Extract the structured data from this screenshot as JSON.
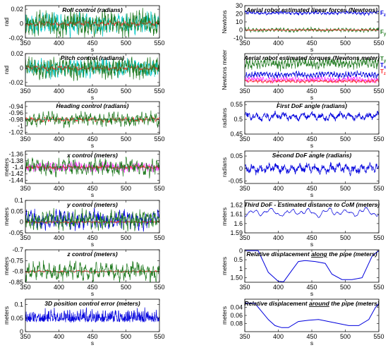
{
  "chart_data": [
    {
      "id": "roll",
      "type": "line",
      "title": "Roll control (radians)",
      "xlabel": "s",
      "ylabel": "rad",
      "xlim": [
        350,
        550
      ],
      "ylim": [
        -0.02,
        0.025
      ],
      "xticks": [
        350,
        400,
        450,
        500,
        550
      ],
      "yticks": [
        -0.02,
        0,
        0.02
      ],
      "yticklabels": [
        "-0.02",
        "0",
        "0.02"
      ],
      "series": [
        {
          "color": "#00c8c8",
          "amp": 0.012,
          "freq": 1.3,
          "seed": 1,
          "mean": 0
        },
        {
          "color": "#ff3030",
          "amp": 0.003,
          "freq": 0.6,
          "seed": 2,
          "mean": 0
        },
        {
          "color": "#207a20",
          "amp": 0.014,
          "freq": 1.5,
          "seed": 3,
          "mean": 0
        }
      ]
    },
    {
      "id": "pitch",
      "type": "line",
      "title": "Pitch control (radians)",
      "xlabel": "s",
      "ylabel": "rad",
      "xlim": [
        350,
        550
      ],
      "ylim": [
        -0.025,
        0.02
      ],
      "xticks": [
        350,
        400,
        450,
        500,
        550
      ],
      "yticks": [
        -0.02,
        0,
        0.02
      ],
      "yticklabels": [
        "-0.02",
        "0",
        "0.02"
      ],
      "series": [
        {
          "color": "#00c8c8",
          "amp": 0.01,
          "freq": 1.3,
          "seed": 4,
          "mean": 0
        },
        {
          "color": "#ff3030",
          "amp": 0.003,
          "freq": 0.6,
          "seed": 5,
          "mean": 0
        },
        {
          "color": "#207a20",
          "amp": 0.012,
          "freq": 1.5,
          "seed": 6,
          "mean": 0
        }
      ]
    },
    {
      "id": "heading",
      "type": "line",
      "title": "Heading control (radians)",
      "xlabel": "s",
      "ylabel": "",
      "xlim": [
        350,
        550
      ],
      "ylim": [
        -1.025,
        -0.925
      ],
      "xticks": [
        350,
        400,
        450,
        500,
        550
      ],
      "yticks": [
        -1.02,
        -1,
        -0.98,
        -0.96,
        -0.94
      ],
      "yticklabels": [
        "-1.02",
        "-1",
        "-0.98",
        "-0.96",
        "-0.94"
      ],
      "series": [
        {
          "color": "#ff3030",
          "amp": 0.006,
          "freq": 0.7,
          "seed": 7,
          "mean": -0.98
        },
        {
          "color": "#207a20",
          "amp": 0.018,
          "freq": 1.0,
          "seed": 8,
          "mean": -0.98
        }
      ],
      "hline": {
        "value": -0.98,
        "color": "#00c8c8"
      }
    },
    {
      "id": "x",
      "type": "line",
      "title": "x control (meters)",
      "xlabel": "s",
      "ylabel": "meters",
      "xlim": [
        350,
        550
      ],
      "ylim": [
        -1.45,
        -1.35
      ],
      "xticks": [
        350,
        400,
        450,
        500,
        550
      ],
      "yticks": [
        -1.44,
        -1.42,
        -1.4,
        -1.38,
        -1.36
      ],
      "yticklabels": [
        "-1.44",
        "-1.42",
        "-1.4",
        "-1.38",
        "-1.36"
      ],
      "series": [
        {
          "color": "#ff30ff",
          "amp": 0.012,
          "freq": 1.8,
          "seed": 9,
          "mean": -1.4
        },
        {
          "color": "#ff3030",
          "amp": 0.004,
          "freq": 0.7,
          "seed": 10,
          "mean": -1.4
        },
        {
          "color": "#207a20",
          "amp": 0.022,
          "freq": 0.9,
          "seed": 11,
          "mean": -1.4
        }
      ],
      "hline": {
        "value": -1.4,
        "color": "#00c8c8"
      }
    },
    {
      "id": "y",
      "type": "line",
      "title": "y control (meters)",
      "xlabel": "s",
      "ylabel": "meters",
      "xlim": [
        350,
        550
      ],
      "ylim": [
        -0.05,
        0.1
      ],
      "xticks": [
        350,
        400,
        450,
        500,
        550
      ],
      "yticks": [
        -0.05,
        0,
        0.05,
        0.1
      ],
      "yticklabels": [
        "-0.05",
        "0",
        "0.05",
        "0.1"
      ],
      "series": [
        {
          "color": "#0000dd",
          "amp": 0.035,
          "freq": 1.1,
          "seed": 12,
          "mean": 0.01
        },
        {
          "color": "#ff3030",
          "amp": 0.004,
          "freq": 0.6,
          "seed": 13,
          "mean": 0
        },
        {
          "color": "#207a20",
          "amp": 0.035,
          "freq": 1.3,
          "seed": 14,
          "mean": 0.01
        }
      ],
      "hline": {
        "value": 0,
        "color": "#00c8c8"
      }
    },
    {
      "id": "z",
      "type": "line",
      "title": "z control (meters)",
      "xlabel": "s",
      "ylabel": "meters",
      "xlim": [
        350,
        550
      ],
      "ylim": [
        -0.85,
        -0.7
      ],
      "xticks": [
        350,
        400,
        450,
        500,
        550
      ],
      "yticks": [
        -0.85,
        -0.8,
        -0.75,
        -0.7
      ],
      "yticklabels": [
        "-0.85",
        "-0.8",
        "-0.75",
        "-0.7"
      ],
      "series": [
        {
          "color": "#ff3030",
          "amp": 0.004,
          "freq": 0.6,
          "seed": 15,
          "mean": -0.8
        },
        {
          "color": "#207a20",
          "amp": 0.035,
          "freq": 0.9,
          "seed": 16,
          "mean": -0.8
        }
      ],
      "hline": {
        "value": -0.8,
        "color": "#00c8c8"
      }
    },
    {
      "id": "err",
      "type": "line",
      "title": "3D position control error (meters)",
      "xlabel": "s",
      "ylabel": "meters",
      "xlim": [
        350,
        550
      ],
      "ylim": [
        0,
        0.12
      ],
      "xticks": [
        350,
        400,
        450,
        500,
        550
      ],
      "yticks": [
        0,
        0.05,
        0.1
      ],
      "yticklabels": [
        "0",
        "0.05",
        "0.1"
      ],
      "series": [
        {
          "color": "#0000dd",
          "amp": 0.03,
          "freq": 1.6,
          "seed": 17,
          "mean": 0.035,
          "abs": true
        }
      ]
    },
    {
      "id": "forces",
      "type": "line",
      "title": "Aerial robot estimated linear forces (Newtons)",
      "xlabel": "s",
      "ylabel": "Newtons",
      "xlim": [
        350,
        550
      ],
      "ylim": [
        -10,
        30
      ],
      "xticks": [
        350,
        400,
        450,
        500,
        550
      ],
      "yticks": [
        -10,
        0,
        10,
        20,
        30
      ],
      "yticklabels": [
        "-10",
        "0",
        "10",
        "20",
        "30"
      ],
      "series": [
        {
          "name": "F",
          "sub": "z",
          "color": "#0000dd",
          "amp": 2.0,
          "freq": 1.2,
          "seed": 18,
          "mean": 21
        },
        {
          "name": "F",
          "sub": "y",
          "color": "#207a20",
          "amp": 2.2,
          "freq": 1.2,
          "seed": 19,
          "mean": 0
        },
        {
          "color": "#ff3030",
          "amp": 0.5,
          "freq": 1.0,
          "seed": 20,
          "mean": 0
        }
      ]
    },
    {
      "id": "torques",
      "type": "line",
      "title": "Aerial robot estimated torques (Newtons meter)",
      "xlabel": "s",
      "ylabel": "Newtons meter",
      "xlim": [
        350,
        550
      ],
      "ylim": [
        -4,
        6
      ],
      "xticks": [
        350,
        400,
        450,
        500,
        550
      ],
      "yticks": [],
      "yticklabels": [],
      "series": [
        {
          "name": "T",
          "sub": "y",
          "color": "#207a20",
          "amp": 1.5,
          "freq": 1.6,
          "seed": 21,
          "mean": 3
        },
        {
          "name": "T",
          "sub": "x",
          "color": "#0000dd",
          "amp": 0.9,
          "freq": 1.6,
          "seed": 22,
          "mean": -0.5
        },
        {
          "color": "#ff30ff",
          "amp": 0.8,
          "freq": 1.6,
          "seed": 23,
          "mean": -2
        },
        {
          "name": "T",
          "sub": "z",
          "color": "#ff3030",
          "amp": 0.4,
          "freq": 1.0,
          "seed": 24,
          "mean": -2.5
        }
      ]
    },
    {
      "id": "dof1",
      "type": "line",
      "title": "First DoF angle (radians)",
      "xlabel": "s",
      "ylabel": "radians",
      "xlim": [
        350,
        550
      ],
      "ylim": [
        0.45,
        0.56
      ],
      "xticks": [
        350,
        400,
        450,
        500,
        550
      ],
      "yticks": [
        0.45,
        0.5,
        0.55
      ],
      "yticklabels": [
        "0.45",
        "0.5",
        "0.55"
      ],
      "series": [
        {
          "color": "#0000dd",
          "amp": 0.012,
          "freq": 0.5,
          "seed": 25,
          "mean": 0.51
        }
      ]
    },
    {
      "id": "dof2",
      "type": "line",
      "title": "Second DoF angle (radians)",
      "xlabel": "s",
      "ylabel": "radians",
      "xlim": [
        350,
        550
      ],
      "ylim": [
        -0.06,
        0.07
      ],
      "xticks": [
        350,
        400,
        450,
        500,
        550
      ],
      "yticks": [
        -0.05,
        0,
        0.05
      ],
      "yticklabels": [
        "-0.05",
        "0",
        "0.05"
      ],
      "series": [
        {
          "color": "#0000dd",
          "amp": 0.018,
          "freq": 0.6,
          "seed": 26,
          "mean": 0
        }
      ]
    },
    {
      "id": "dof3",
      "type": "line",
      "title": "Third DoF - Estimated distance to CoM (meters)",
      "xlabel": "s",
      "ylabel": "meters",
      "xlim": [
        350,
        550
      ],
      "ylim": [
        1.59,
        1.625
      ],
      "xticks": [
        350,
        400,
        450,
        500,
        550
      ],
      "yticks": [
        1.59,
        1.6,
        1.61,
        1.62
      ],
      "yticklabels": [
        "1.59",
        "1.6",
        "1.61",
        "1.62"
      ],
      "series": [
        {
          "color": "#0000dd",
          "amp": 0.005,
          "freq": 0.25,
          "seed": 27,
          "mean": 1.612,
          "smooth": true
        }
      ]
    },
    {
      "id": "along",
      "type": "line",
      "title": "Relative displacement along the pipe (meters)",
      "underline": "along",
      "xlabel": "s",
      "ylabel": "meters",
      "xlim": [
        350,
        550
      ],
      "ylim": [
        -0.05,
        1.75
      ],
      "reverse_y": true,
      "xticks": [
        350,
        400,
        450,
        500,
        550
      ],
      "yticks": [
        0,
        0.5,
        1,
        1.5
      ],
      "yticklabels": [
        "0",
        "0.5",
        "1",
        "1.50"
      ],
      "series": [
        {
          "color": "#0000dd",
          "points": [
            [
              350,
              0.0
            ],
            [
              370,
              0.0
            ],
            [
              385,
              1.2
            ],
            [
              400,
              1.7
            ],
            [
              408,
              1.72
            ],
            [
              420,
              1.1
            ],
            [
              430,
              0.6
            ],
            [
              440,
              0.55
            ],
            [
              455,
              0.6
            ],
            [
              470,
              0.7
            ],
            [
              480,
              1.3
            ],
            [
              495,
              1.6
            ],
            [
              510,
              1.6
            ],
            [
              525,
              1.5
            ],
            [
              540,
              0.3
            ],
            [
              550,
              0.0
            ]
          ]
        }
      ]
    },
    {
      "id": "around",
      "type": "line",
      "title": "Relative displacement around the pipe (meters)",
      "underline": "around",
      "xlabel": "s",
      "ylabel": "meters",
      "xlim": [
        350,
        550
      ],
      "ylim": [
        0.02,
        0.1
      ],
      "reverse_y": true,
      "xticks": [
        350,
        400,
        450,
        500,
        550
      ],
      "yticks": [
        0.04,
        0.06,
        0.08
      ],
      "yticklabels": [
        "0.04",
        "0.06",
        "0.08"
      ],
      "series": [
        {
          "color": "#0000dd",
          "points": [
            [
              350,
              0.03
            ],
            [
              365,
              0.03
            ],
            [
              375,
              0.05
            ],
            [
              385,
              0.07
            ],
            [
              395,
              0.085
            ],
            [
              405,
              0.09
            ],
            [
              415,
              0.09
            ],
            [
              430,
              0.075
            ],
            [
              445,
              0.072
            ],
            [
              460,
              0.07
            ],
            [
              475,
              0.075
            ],
            [
              490,
              0.08
            ],
            [
              505,
              0.085
            ],
            [
              520,
              0.085
            ],
            [
              535,
              0.07
            ],
            [
              545,
              0.04
            ],
            [
              550,
              0.03
            ]
          ]
        }
      ]
    }
  ]
}
